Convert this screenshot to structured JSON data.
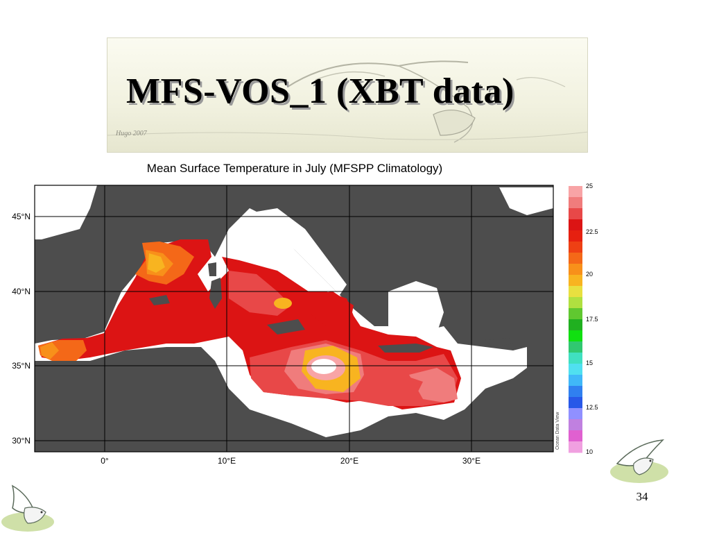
{
  "slide": {
    "title": "MFS-VOS_1 (XBT data)",
    "page_number": "34"
  },
  "map": {
    "title": "Mean Surface Temperature in July (MFSPP Climatology)",
    "watermark": "Ocean Data View",
    "lat_labels": [
      "45°N",
      "40°N",
      "35°N",
      "30°N"
    ],
    "lon_labels": [
      "0°",
      "10°E",
      "20°E",
      "30°E"
    ],
    "colorbar": {
      "tick_labels": [
        "25",
        "22.5",
        "20",
        "17.5",
        "15",
        "12.5",
        "10"
      ],
      "colors_top_to_bottom": [
        "#f8a4a6",
        "#f07c7c",
        "#e84848",
        "#dc1414",
        "#e62010",
        "#ee4014",
        "#f46818",
        "#f8901a",
        "#f8b420",
        "#e8e040",
        "#b0e040",
        "#60c830",
        "#20b020",
        "#10e010",
        "#30c870",
        "#40e0c0",
        "#50e0f0",
        "#40b8f8",
        "#3080f0",
        "#2858e8",
        "#9090ff",
        "#c080e0",
        "#e060d0",
        "#f0a0e0"
      ],
      "land_color": "#4d4d4d",
      "water_no_data_color": "#ffffff"
    }
  },
  "banner": {
    "sketch_signature": "Hugo 2007"
  }
}
